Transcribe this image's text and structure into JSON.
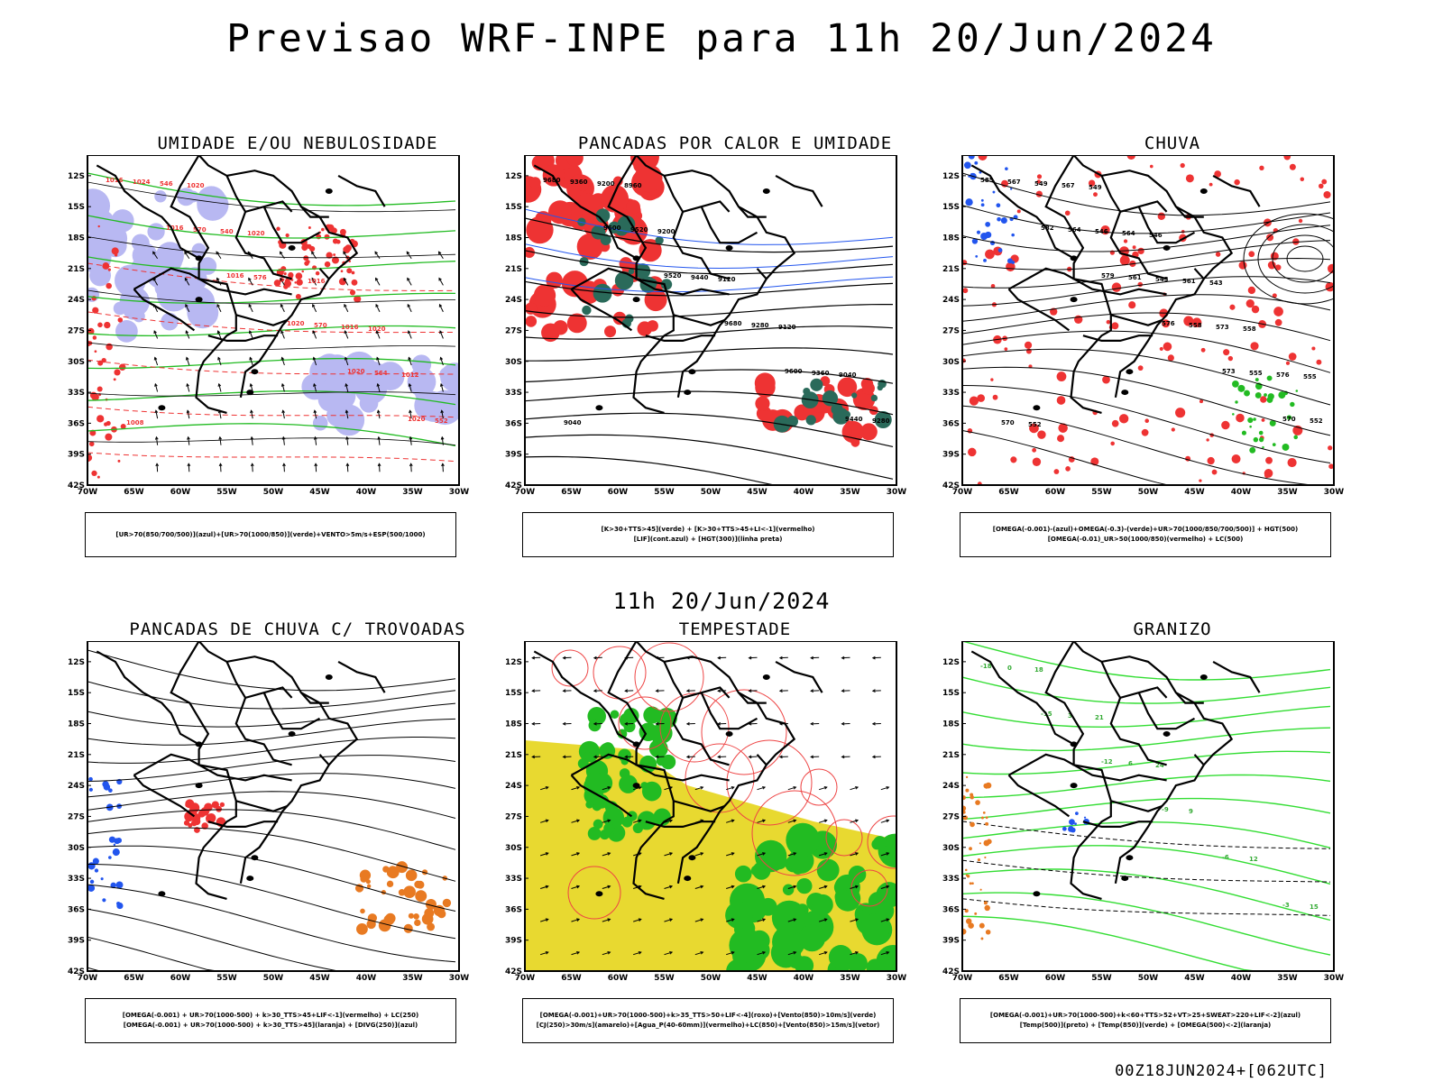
{
  "header": {
    "title": "Previsao WRF-INPE  para 11h 20/Jun/2024",
    "middle_title": "11h 20/Jun/2024",
    "run_stamp": "00Z18JUN2024+[062UTC]"
  },
  "axes": {
    "lat_labels": [
      "12S",
      "15S",
      "18S",
      "21S",
      "24S",
      "27S",
      "30S",
      "33S",
      "36S",
      "39S",
      "42S"
    ],
    "lon_labels": [
      "70W",
      "65W",
      "60W",
      "55W",
      "50W",
      "45W",
      "40W",
      "35W",
      "30W"
    ]
  },
  "panels": [
    {
      "title": "UMIDADE E/OU NEBULOSIDADE",
      "legend": [
        "[UR>70(850/700/500)](azul)+[UR>70(1000/850)](verde)+VENTO>5m/s+ESP(500/1000)"
      ],
      "labels": [
        "1016",
        "1016",
        "1016",
        "1020",
        "1020",
        "1020",
        "1024",
        "570",
        "576",
        "570",
        "564",
        "552",
        "546",
        "540",
        "534",
        "1016",
        "1012",
        "1008",
        "1020",
        "1020",
        "1016",
        "1020"
      ]
    },
    {
      "title": "PANCADAS POR CALOR E UMIDADE",
      "legend": [
        "[K>30+TTS>45](verde)  +  [K>30+TTS>45+LI<-1](vermelho)",
        "[LIF](cont.azul)  +  [HGT(300)](linha preta)"
      ],
      "labels": [
        "9680",
        "9600",
        "9520",
        "9680",
        "9600",
        "9440",
        "9360",
        "9520",
        "9440",
        "9280",
        "9360",
        "9280",
        "9200",
        "9200",
        "9120",
        "9120",
        "9040",
        "9040",
        "8960"
      ]
    },
    {
      "title": "CHUVA",
      "legend": [
        "[OMEGA(-0.001)-(azul)+OMEGA(-0.3)-(verde)+UR>70(1000/850/700/500)]  +  HGT(500)",
        "[OMEGA(-0.01)_UR>50(1000/850)(vermelho)  +  LC(500)"
      ],
      "labels": [
        "585",
        "582",
        "579",
        "576",
        "573",
        "570",
        "567",
        "564",
        "561",
        "558",
        "555",
        "552",
        "549",
        "546",
        "543",
        "573",
        "576",
        "570",
        "567",
        "564",
        "561",
        "558",
        "555",
        "552",
        "549",
        "546",
        "543"
      ]
    },
    {
      "title": "PANCADAS DE CHUVA C/ TROVOADAS",
      "legend": [
        "[OMEGA(-0.001)  +  UR>70(1000-500)  +  k>30_TTS>45+LIF<-1](vermelho)  +  LC(250)",
        "[OMEGA(-0.001)  +  UR>70(1000-500)  +  k>30_TTS>45](laranja)  +  [DIVG(250)](azul)"
      ],
      "labels": []
    },
    {
      "title": "TEMPESTADE",
      "legend": [
        "[OMEGA(-0.001)+UR>70(1000-500)+k>35_TTS>50+LIF<-4](roxo)+[Vento(850)>10m/s](verde)",
        "[CJ(250)>30m/s](amarelo)+[Agua_P(40-60mm)](vermelho)+LC(850)+[Vento(850)>15m/s](vetor)"
      ],
      "labels": []
    },
    {
      "title": "GRANIZO",
      "legend": [
        "[OMEGA(-0.001)+UR>70(1000-500)+k<60+TTS>52+VT>25+SWEAT>220+LIF<-2](azul)",
        "[Temp(500)](preto)  +  [Temp(850)](verde)  +  [OMEGA(500)<-2](laranja)"
      ],
      "labels": [
        "-18",
        "-15",
        "-12",
        "-9",
        "-6",
        "-3",
        "0",
        "3",
        "6",
        "9",
        "12",
        "15",
        "18",
        "21",
        "24"
      ]
    }
  ]
}
